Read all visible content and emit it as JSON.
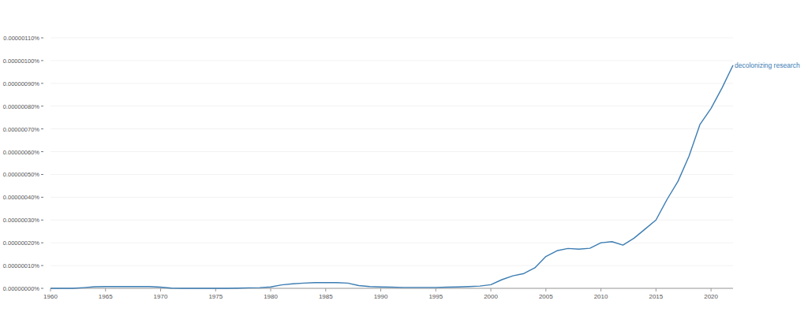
{
  "chart_data": {
    "type": "line",
    "x": [
      1960,
      1961,
      1962,
      1963,
      1964,
      1965,
      1966,
      1967,
      1968,
      1969,
      1970,
      1971,
      1972,
      1973,
      1974,
      1975,
      1976,
      1977,
      1978,
      1979,
      1980,
      1981,
      1982,
      1983,
      1984,
      1985,
      1986,
      1987,
      1988,
      1989,
      1990,
      1991,
      1992,
      1993,
      1994,
      1995,
      1996,
      1997,
      1998,
      1999,
      2000,
      2001,
      2002,
      2003,
      2004,
      2005,
      2006,
      2007,
      2008,
      2009,
      2010,
      2011,
      2012,
      2013,
      2014,
      2015,
      2016,
      2017,
      2018,
      2019,
      2020,
      2021,
      2022
    ],
    "series": [
      {
        "name": "decolonizing research",
        "color": "#3c7db3",
        "values": [
          0,
          0,
          0,
          3e-09,
          7e-09,
          8e-09,
          8e-09,
          8e-09,
          8e-09,
          8e-09,
          5e-09,
          1e-09,
          0,
          0,
          0,
          0,
          0,
          1e-09,
          2e-09,
          3e-09,
          6e-09,
          1.5e-08,
          2e-08,
          2.3e-08,
          2.5e-08,
          2.5e-08,
          2.5e-08,
          2.3e-08,
          1.2e-08,
          8e-09,
          6e-09,
          5e-09,
          4e-09,
          4e-09,
          4e-09,
          4e-09,
          5e-09,
          6e-09,
          8e-09,
          1e-08,
          1.6e-08,
          3.8e-08,
          5.5e-08,
          6.5e-08,
          9e-08,
          1.4e-07,
          1.65e-07,
          1.75e-07,
          1.72e-07,
          1.76e-07,
          2e-07,
          2.05e-07,
          1.9e-07,
          2.2e-07,
          2.6e-07,
          3e-07,
          3.9e-07,
          4.7e-07,
          5.8e-07,
          7.2e-07,
          7.9e-07,
          8.8e-07,
          9.8e-07
        ]
      }
    ],
    "xlim": [
      1960,
      2022
    ],
    "xticks": [
      1960,
      1965,
      1970,
      1975,
      1980,
      1985,
      1990,
      1995,
      2000,
      2005,
      2010,
      2015,
      2020
    ],
    "ylim": [
      0,
      1.1e-06
    ],
    "yticks": [
      {
        "value": 0,
        "label": "0.00000000%"
      },
      {
        "value": 1e-07,
        "label": "0.00000010%"
      },
      {
        "value": 2e-07,
        "label": "0.00000020%"
      },
      {
        "value": 3e-07,
        "label": "0.00000030%"
      },
      {
        "value": 4e-07,
        "label": "0.00000040%"
      },
      {
        "value": 5e-07,
        "label": "0.00000050%"
      },
      {
        "value": 6e-07,
        "label": "0.00000060%"
      },
      {
        "value": 7e-07,
        "label": "0.00000070%"
      },
      {
        "value": 8e-07,
        "label": "0.00000080%"
      },
      {
        "value": 9e-07,
        "label": "0.00000090%"
      },
      {
        "value": 1e-06,
        "label": "0.00000100%"
      },
      {
        "value": 1.1e-06,
        "label": "0.00000110%"
      }
    ],
    "grid": true
  }
}
